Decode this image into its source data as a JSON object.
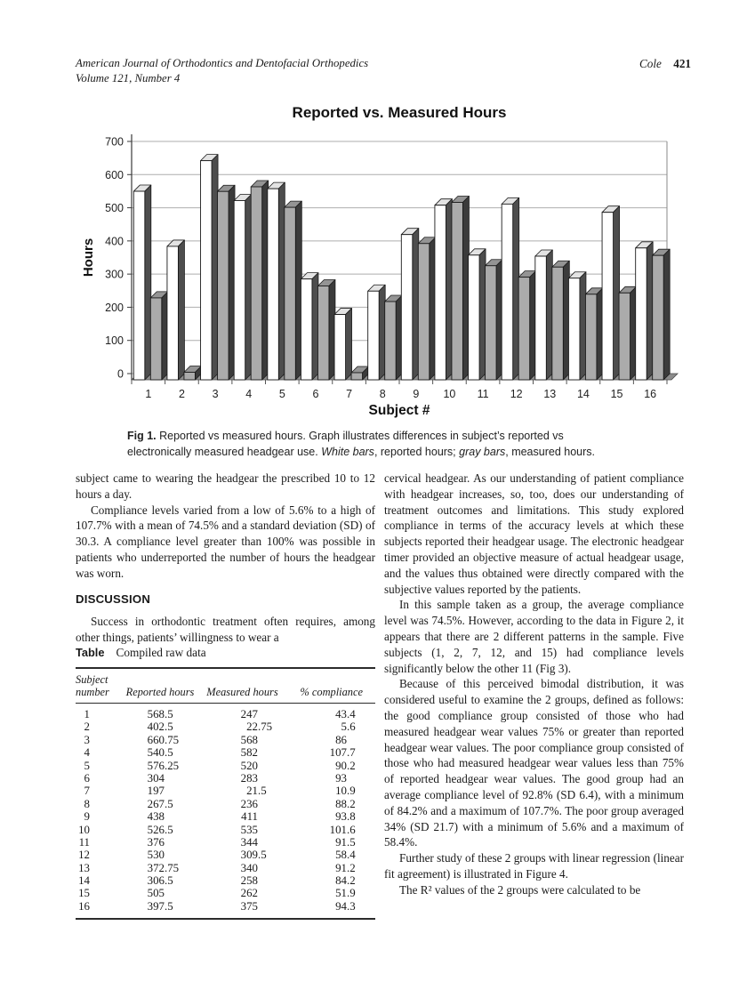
{
  "page_header": {
    "journal": "American Journal of Orthodontics and Dentofacial Orthopedics",
    "volume_line": "Volume 121, Number 4",
    "author": "Cole",
    "page_number": "421"
  },
  "figure": {
    "caption_parts": [
      {
        "text": "Fig 1.",
        "bold": true
      },
      {
        "text": " Reported vs measured hours. Graph illustrates differences in subject’s reported vs electronically measured headgear use. "
      },
      {
        "text": "White bars",
        "italic": true
      },
      {
        "text": ", reported hours; "
      },
      {
        "text": "gray bars",
        "italic": true
      },
      {
        "text": ", measured hours."
      }
    ]
  },
  "chart_data": {
    "type": "bar",
    "title": "Reported vs. Measured Hours",
    "xlabel": "Subject #",
    "ylabel": "Hours",
    "ylim": [
      0,
      700
    ],
    "ytick_step": 100,
    "grid": true,
    "legend": "none",
    "style": "3d-column",
    "categories": [
      "1",
      "2",
      "3",
      "4",
      "5",
      "6",
      "7",
      "8",
      "9",
      "10",
      "11",
      "12",
      "13",
      "14",
      "15",
      "16"
    ],
    "series": [
      {
        "name": "Reported hours",
        "color": "#ffffff",
        "values": [
          568.5,
          402.5,
          660.75,
          540.5,
          576.25,
          304,
          197,
          267.5,
          438,
          526.5,
          376,
          530,
          372.75,
          306.5,
          505,
          397.5
        ]
      },
      {
        "name": "Measured hours",
        "color": "#ababab",
        "values": [
          247,
          22.75,
          568,
          582,
          520,
          283,
          21.5,
          236,
          411,
          535,
          344,
          309.5,
          340,
          258,
          262,
          375
        ]
      }
    ]
  },
  "columns": {
    "left": {
      "paragraphs": [
        {
          "text": "subject came to wearing the headgear the prescribed 10 to 12 hours a day.",
          "indent": false
        },
        {
          "text": "Compliance levels varied from a low of 5.6% to a high of 107.7% with a mean of 74.5% and a standard deviation (SD) of 30.3. A compliance level greater than 100% was possible in patients who underreported the number of hours the headgear was worn.",
          "indent": true
        }
      ],
      "heading": "DISCUSSION",
      "paragraphs_after": [
        {
          "text": "Success in orthodontic treatment often requires, among other things, patients’ willingness to wear a",
          "indent": true
        }
      ]
    },
    "right": {
      "paragraphs": [
        {
          "text": "cervical headgear. As our understanding of patient compliance with headgear increases, so, too, does our understanding of treatment outcomes and limitations. This study explored compliance in terms of the accuracy levels at which these subjects reported their headgear usage. The electronic headgear timer provided an objective measure of actual headgear usage, and the values thus obtained were directly compared with the subjective values reported by the patients.",
          "indent": false
        },
        {
          "text": "In this sample taken as a group, the average compliance level was 74.5%. However, according to the data in Figure 2, it appears that there are 2 different patterns in the sample. Five subjects (1, 2, 7, 12, and 15) had compliance levels significantly below the other 11 (Fig 3).",
          "indent": true
        },
        {
          "text": "Because of this perceived bimodal distribution, it was considered useful to examine the 2 groups, defined as follows: the good compliance group consisted of those who had measured headgear wear values 75% or greater than reported headgear wear values. The poor compliance group consisted of those who had measured headgear wear values less than 75% of reported headgear wear values. The good group had an average compliance level of 92.8% (SD 6.4), with a minimum of 84.2% and a maximum of 107.7%. The poor group averaged 34% (SD 21.7) with a minimum of 5.6% and a maximum of 58.4%.",
          "indent": true
        },
        {
          "text": "Further study of these 2 groups with linear regression (linear fit agreement) is illustrated in Figure 4.",
          "indent": true
        },
        {
          "text": "The R² values of the 2 groups were calculated to be",
          "indent": true
        }
      ]
    }
  },
  "table": {
    "label": "Table",
    "title": "Compiled raw data",
    "columns": [
      "Subject\nnumber",
      "Reported hours",
      "Measured hours",
      "% compliance"
    ],
    "rows": [
      [
        "1",
        "568.5",
        "247",
        "43.4"
      ],
      [
        "2",
        "402.5",
        "22.75",
        "5.6"
      ],
      [
        "3",
        "660.75",
        "568",
        "86"
      ],
      [
        "4",
        "540.5",
        "582",
        "107.7"
      ],
      [
        "5",
        "576.25",
        "520",
        "90.2"
      ],
      [
        "6",
        "304",
        "283",
        "93"
      ],
      [
        "7",
        "197",
        "21.5",
        "10.9"
      ],
      [
        "8",
        "267.5",
        "236",
        "88.2"
      ],
      [
        "9",
        "438",
        "411",
        "93.8"
      ],
      [
        "10",
        "526.5",
        "535",
        "101.6"
      ],
      [
        "11",
        "376",
        "344",
        "91.5"
      ],
      [
        "12",
        "530",
        "309.5",
        "58.4"
      ],
      [
        "13",
        "372.75",
        "340",
        "91.2"
      ],
      [
        "14",
        "306.5",
        "258",
        "84.2"
      ],
      [
        "15",
        "505",
        "262",
        "51.9"
      ],
      [
        "16",
        "397.5",
        "375",
        "94.3"
      ]
    ]
  }
}
